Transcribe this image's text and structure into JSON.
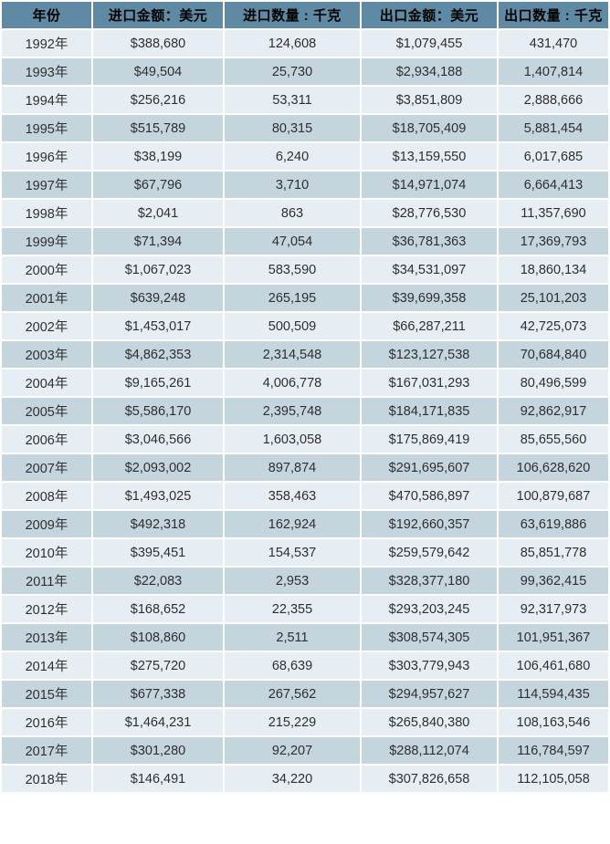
{
  "colors": {
    "header_bg": "#5f8aa3",
    "header_text": "#000000",
    "row_light": "#e7eef3",
    "row_dark": "#c5d5de",
    "cell_text": "#2e2e2e",
    "gap": "#ffffff"
  },
  "chart_data": {
    "type": "table",
    "columns": [
      "年份",
      "进口金额：美元",
      "进口数量 : 千克",
      "出口金额：美元",
      "出口数量 : 千克"
    ],
    "rows": [
      [
        "1992年",
        "$388,680",
        "124,608",
        "$1,079,455",
        "431,470"
      ],
      [
        "1993年",
        "$49,504",
        "25,730",
        "$2,934,188",
        "1,407,814"
      ],
      [
        "1994年",
        "$256,216",
        "53,311",
        "$3,851,809",
        "2,888,666"
      ],
      [
        "1995年",
        "$515,789",
        "80,315",
        "$18,705,409",
        "5,881,454"
      ],
      [
        "1996年",
        "$38,199",
        "6,240",
        "$13,159,550",
        "6,017,685"
      ],
      [
        "1997年",
        "$67,796",
        "3,710",
        "$14,971,074",
        "6,664,413"
      ],
      [
        "1998年",
        "$2,041",
        "863",
        "$28,776,530",
        "11,357,690"
      ],
      [
        "1999年",
        "$71,394",
        "47,054",
        "$36,781,363",
        "17,369,793"
      ],
      [
        "2000年",
        "$1,067,023",
        "583,590",
        "$34,531,097",
        "18,860,134"
      ],
      [
        "2001年",
        "$639,248",
        "265,195",
        "$39,699,358",
        "25,101,203"
      ],
      [
        "2002年",
        "$1,453,017",
        "500,509",
        "$66,287,211",
        "42,725,073"
      ],
      [
        "2003年",
        "$4,862,353",
        "2,314,548",
        "$123,127,538",
        "70,684,840"
      ],
      [
        "2004年",
        "$9,165,261",
        "4,006,778",
        "$167,031,293",
        "80,496,599"
      ],
      [
        "2005年",
        "$5,586,170",
        "2,395,748",
        "$184,171,835",
        "92,862,917"
      ],
      [
        "2006年",
        "$3,046,566",
        "1,603,058",
        "$175,869,419",
        "85,655,560"
      ],
      [
        "2007年",
        "$2,093,002",
        "897,874",
        "$291,695,607",
        "106,628,620"
      ],
      [
        "2008年",
        "$1,493,025",
        "358,463",
        "$470,586,897",
        "100,879,687"
      ],
      [
        "2009年",
        "$492,318",
        "162,924",
        "$192,660,357",
        "63,619,886"
      ],
      [
        "2010年",
        "$395,451",
        "154,537",
        "$259,579,642",
        "85,851,778"
      ],
      [
        "2011年",
        "$22,083",
        "2,953",
        "$328,377,180",
        "99,362,415"
      ],
      [
        "2012年",
        "$168,652",
        "22,355",
        "$293,203,245",
        "92,317,973"
      ],
      [
        "2013年",
        "$108,860",
        "2,511",
        "$308,574,305",
        "101,951,367"
      ],
      [
        "2014年",
        "$275,720",
        "68,639",
        "$303,779,943",
        "106,461,680"
      ],
      [
        "2015年",
        "$677,338",
        "267,562",
        "$294,957,627",
        "114,594,435"
      ],
      [
        "2016年",
        "$1,464,231",
        "215,229",
        "$265,840,380",
        "108,163,546"
      ],
      [
        "2017年",
        "$301,280",
        "92,207",
        "$288,112,074",
        "116,784,597"
      ],
      [
        "2018年",
        "$146,491",
        "34,220",
        "$307,826,658",
        "112,105,058"
      ]
    ]
  }
}
